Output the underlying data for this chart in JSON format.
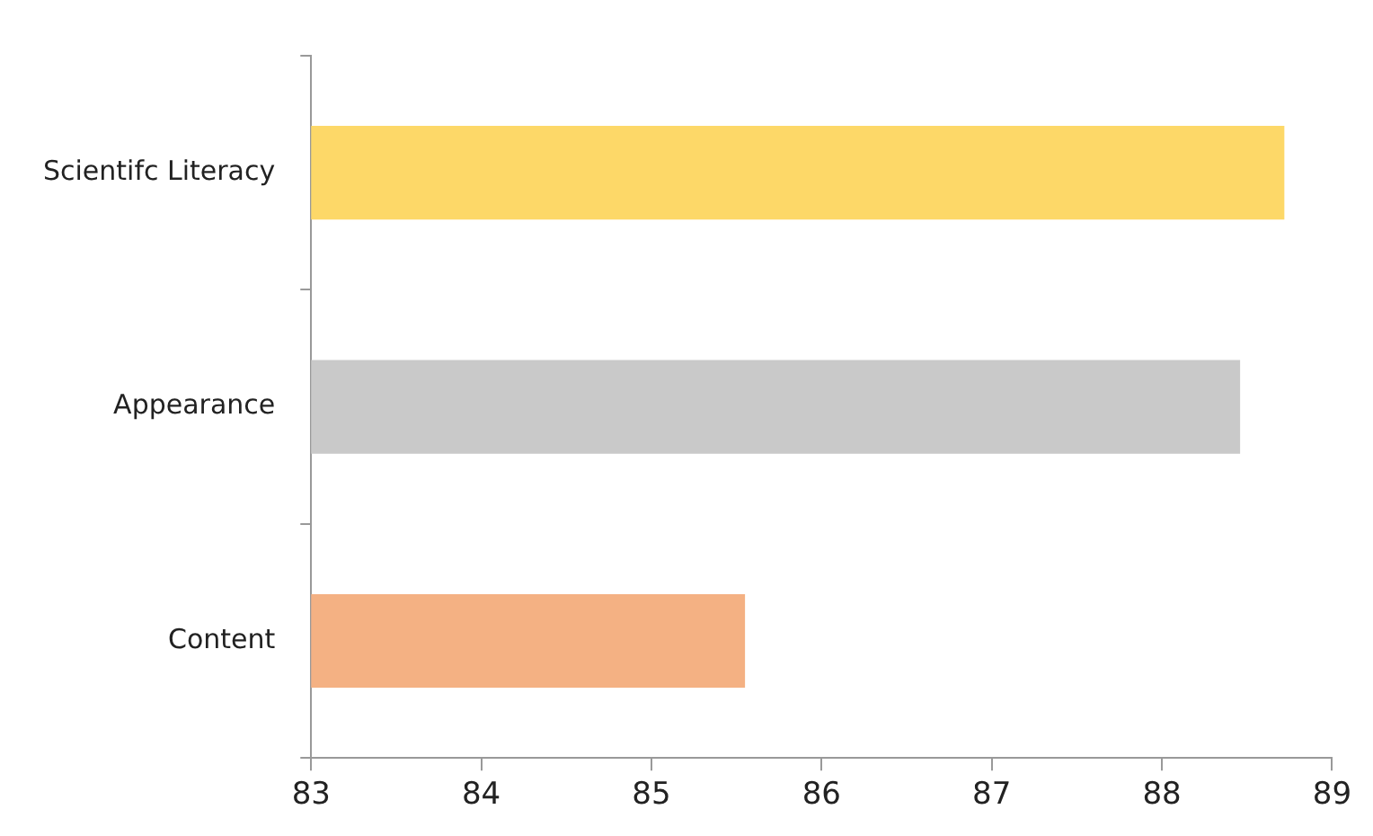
{
  "chart_data": {
    "type": "bar",
    "orientation": "horizontal",
    "categories": [
      "Scientifc Literacy",
      "Appearance",
      "Content"
    ],
    "values": [
      88.72,
      88.46,
      85.55
    ],
    "colors": [
      "#fdd868",
      "#c9c9c9",
      "#f4b183"
    ],
    "xlim": [
      83,
      89
    ],
    "xticks": [
      83,
      84,
      85,
      86,
      87,
      88,
      89
    ]
  }
}
